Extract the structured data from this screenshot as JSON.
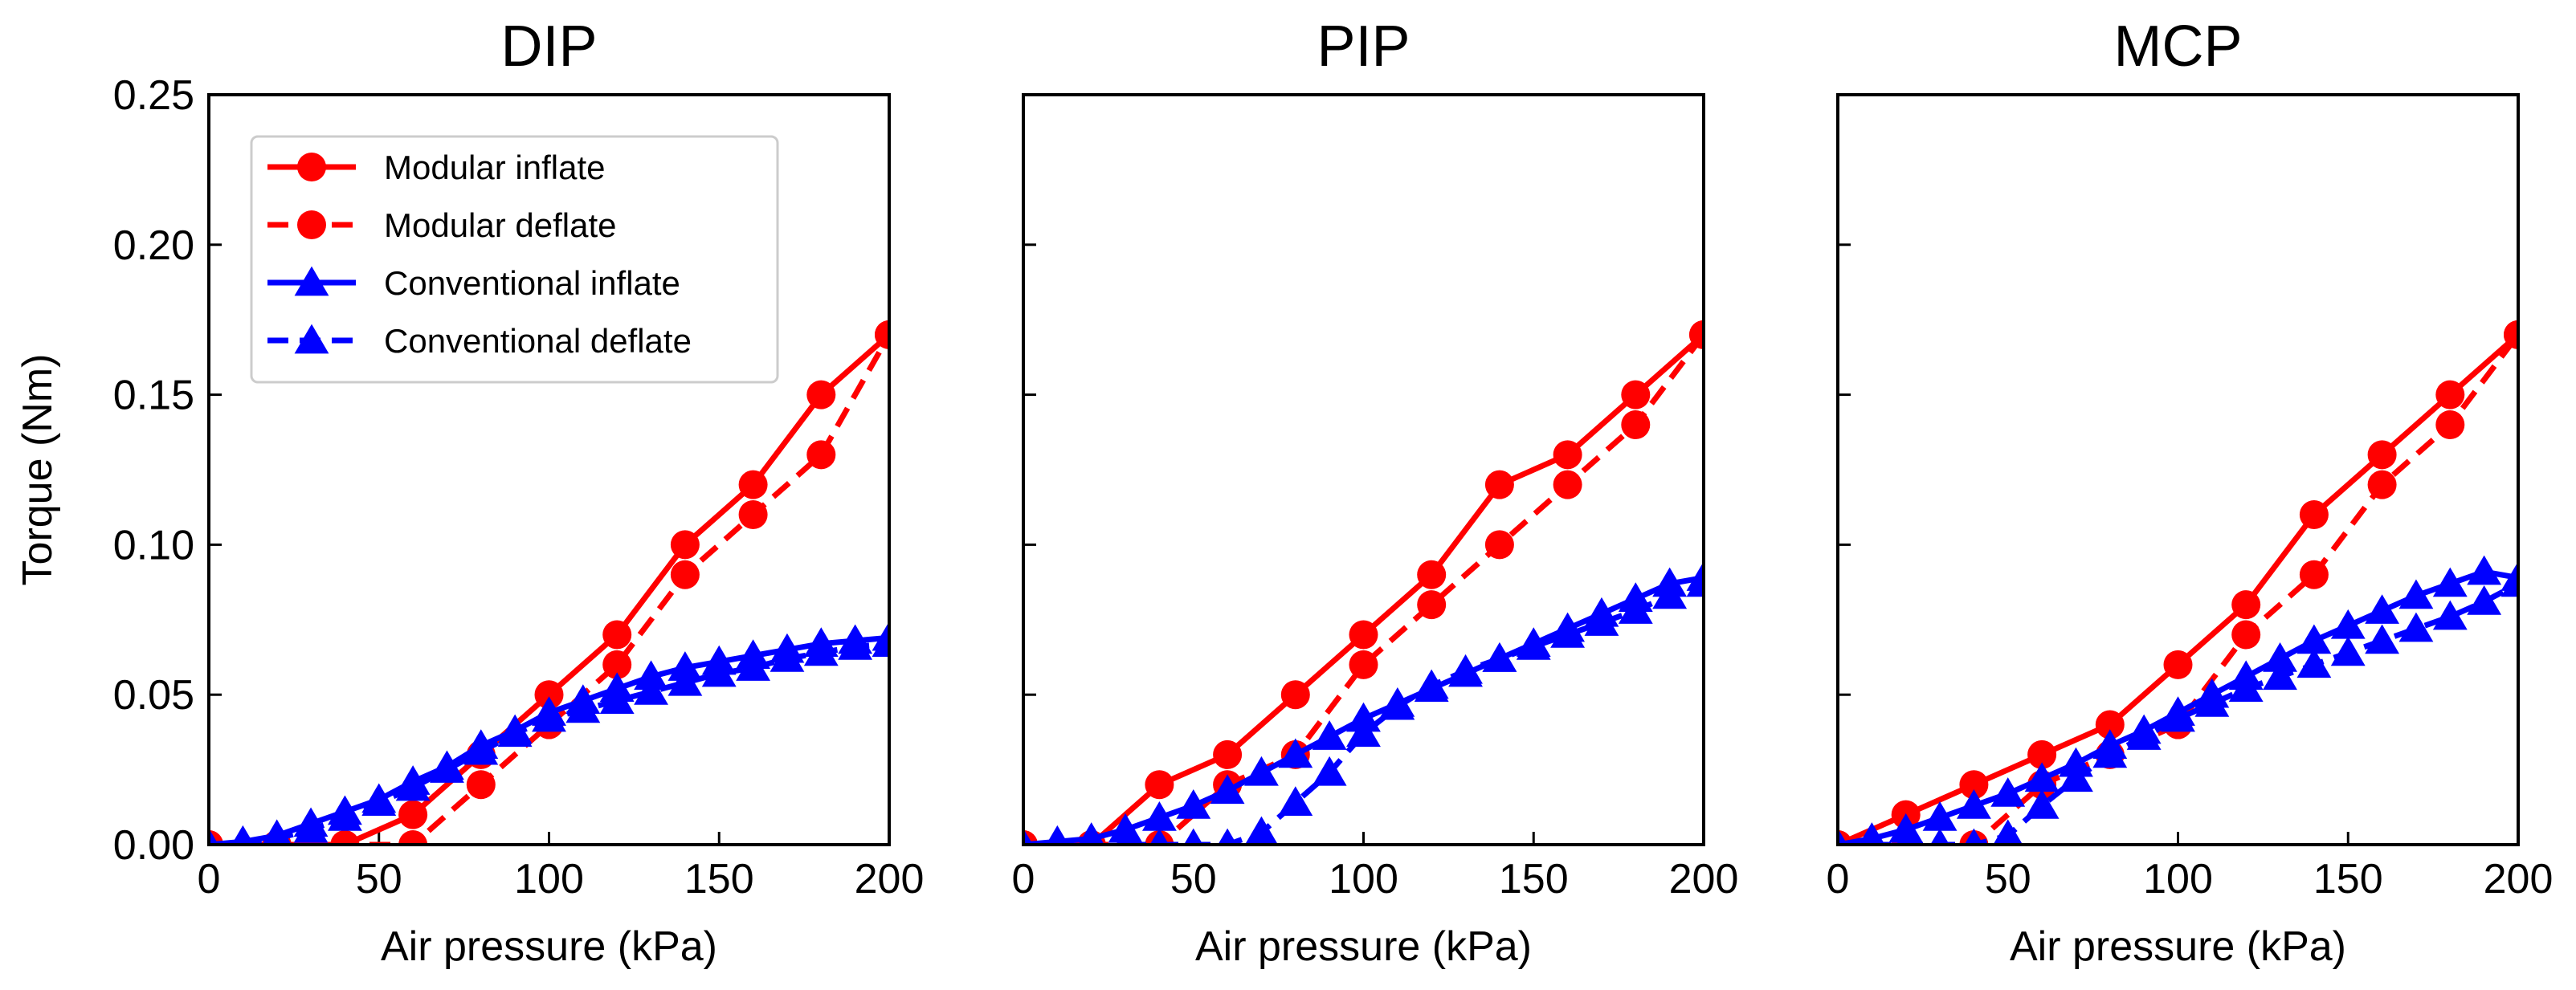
{
  "chart_data": [
    {
      "type": "line",
      "title": "DIP",
      "xlabel": "Air pressure (kPa)",
      "ylabel": "Torque (Nm)",
      "xlim": [
        0,
        200
      ],
      "ylim": [
        0,
        0.25
      ],
      "xticks": [
        "0",
        "50",
        "100",
        "150",
        "200"
      ],
      "yticks": [
        "0.00",
        "0.05",
        "0.10",
        "0.15",
        "0.20",
        "0.25"
      ],
      "grid": false,
      "legend": "top-left",
      "series": [
        {
          "name": "Modular inflate",
          "color": "#ff0000",
          "marker": "circle",
          "style": "solid",
          "x": [
            0,
            20,
            40,
            60,
            80,
            100,
            120,
            140,
            160,
            180,
            200
          ],
          "y": [
            0,
            0,
            0,
            0.01,
            0.03,
            0.05,
            0.07,
            0.1,
            0.12,
            0.15,
            0.17
          ]
        },
        {
          "name": "Modular deflate",
          "color": "#ff0000",
          "marker": "circle",
          "style": "dashed",
          "x": [
            0,
            20,
            40,
            60,
            80,
            100,
            120,
            140,
            160,
            180,
            200
          ],
          "y": [
            0,
            0,
            0,
            0,
            0.02,
            0.04,
            0.06,
            0.09,
            0.11,
            0.13,
            0.17
          ]
        },
        {
          "name": "Conventional inflate",
          "color": "#0000ff",
          "marker": "triangle",
          "style": "solid",
          "x": [
            0,
            10,
            20,
            30,
            40,
            50,
            60,
            70,
            80,
            90,
            100,
            110,
            120,
            130,
            140,
            150,
            160,
            170,
            180,
            190,
            200
          ],
          "y": [
            0,
            0.001,
            0.003,
            0.007,
            0.011,
            0.015,
            0.021,
            0.026,
            0.033,
            0.038,
            0.044,
            0.048,
            0.052,
            0.056,
            0.059,
            0.061,
            0.063,
            0.065,
            0.067,
            0.068,
            0.069
          ]
        },
        {
          "name": "Conventional deflate",
          "color": "#0000ff",
          "marker": "triangle",
          "style": "dashed",
          "x": [
            0,
            10,
            20,
            30,
            40,
            50,
            60,
            70,
            80,
            90,
            100,
            110,
            120,
            130,
            140,
            150,
            160,
            170,
            180,
            190,
            200
          ],
          "y": [
            0,
            0,
            0.002,
            0.005,
            0.009,
            0.014,
            0.019,
            0.025,
            0.031,
            0.037,
            0.042,
            0.045,
            0.048,
            0.051,
            0.054,
            0.057,
            0.059,
            0.062,
            0.064,
            0.066,
            0.067
          ]
        }
      ]
    },
    {
      "type": "line",
      "title": "PIP",
      "xlabel": "Air pressure (kPa)",
      "ylabel": "",
      "xlim": [
        0,
        200
      ],
      "ylim": [
        0,
        0.25
      ],
      "xticks": [
        "0",
        "50",
        "100",
        "150",
        "200"
      ],
      "yticks": [],
      "grid": false,
      "series": [
        {
          "name": "Modular inflate",
          "color": "#ff0000",
          "marker": "circle",
          "style": "solid",
          "x": [
            0,
            20,
            40,
            60,
            80,
            100,
            120,
            140,
            160,
            180,
            200
          ],
          "y": [
            0,
            0,
            0.02,
            0.03,
            0.05,
            0.07,
            0.09,
            0.12,
            0.13,
            0.15,
            0.17
          ]
        },
        {
          "name": "Modular deflate",
          "color": "#ff0000",
          "marker": "circle",
          "style": "dashed",
          "x": [
            0,
            20,
            40,
            60,
            80,
            100,
            120,
            140,
            160,
            180,
            200
          ],
          "y": [
            0,
            0,
            0,
            0.02,
            0.03,
            0.06,
            0.08,
            0.1,
            0.12,
            0.14,
            0.17
          ]
        },
        {
          "name": "Conventional inflate",
          "color": "#0000ff",
          "marker": "triangle",
          "style": "solid",
          "x": [
            0,
            10,
            20,
            30,
            40,
            50,
            60,
            70,
            80,
            90,
            100,
            110,
            120,
            130,
            140,
            150,
            160,
            170,
            180,
            190,
            200
          ],
          "y": [
            0,
            0.001,
            0.002,
            0.005,
            0.009,
            0.013,
            0.018,
            0.024,
            0.03,
            0.036,
            0.042,
            0.047,
            0.052,
            0.057,
            0.062,
            0.067,
            0.072,
            0.077,
            0.082,
            0.087,
            0.089
          ]
        },
        {
          "name": "Conventional deflate",
          "color": "#0000ff",
          "marker": "triangle",
          "style": "dashed",
          "x": [
            30,
            40,
            50,
            60,
            70,
            80,
            90,
            100,
            110,
            120,
            130,
            140,
            150,
            160,
            170,
            180,
            190,
            200
          ],
          "y": [
            0,
            0,
            0,
            0,
            0.004,
            0.014,
            0.024,
            0.037,
            0.046,
            0.053,
            0.058,
            0.062,
            0.066,
            0.07,
            0.074,
            0.078,
            0.083,
            0.087
          ]
        }
      ]
    },
    {
      "type": "line",
      "title": "MCP",
      "xlabel": "Air pressure (kPa)",
      "ylabel": "",
      "xlim": [
        0,
        200
      ],
      "ylim": [
        0,
        0.25
      ],
      "xticks": [
        "0",
        "50",
        "100",
        "150",
        "200"
      ],
      "yticks": [],
      "grid": false,
      "series": [
        {
          "name": "Modular inflate",
          "color": "#ff0000",
          "marker": "circle",
          "style": "solid",
          "x": [
            0,
            20,
            40,
            60,
            80,
            100,
            120,
            140,
            160,
            180,
            200
          ],
          "y": [
            0,
            0.01,
            0.02,
            0.03,
            0.04,
            0.06,
            0.08,
            0.11,
            0.13,
            0.15,
            0.17
          ]
        },
        {
          "name": "Modular deflate",
          "color": "#ff0000",
          "marker": "circle",
          "style": "dashed",
          "x": [
            0,
            20,
            40,
            60,
            80,
            100,
            120,
            140,
            160,
            180,
            200
          ],
          "y": [
            0,
            0,
            0,
            0.02,
            0.03,
            0.04,
            0.07,
            0.09,
            0.12,
            0.14,
            0.17
          ]
        },
        {
          "name": "Conventional inflate",
          "color": "#0000ff",
          "marker": "triangle",
          "style": "solid",
          "x": [
            0,
            10,
            20,
            30,
            40,
            50,
            60,
            70,
            80,
            90,
            100,
            110,
            120,
            130,
            140,
            150,
            160,
            170,
            180,
            190,
            200
          ],
          "y": [
            0,
            0.002,
            0.005,
            0.009,
            0.013,
            0.017,
            0.022,
            0.027,
            0.033,
            0.038,
            0.044,
            0.05,
            0.056,
            0.062,
            0.068,
            0.073,
            0.078,
            0.083,
            0.087,
            0.091,
            0.089
          ]
        },
        {
          "name": "Conventional deflate",
          "color": "#0000ff",
          "marker": "triangle",
          "style": "dashed",
          "x": [
            0,
            10,
            20,
            30,
            40,
            50,
            60,
            70,
            80,
            90,
            100,
            110,
            120,
            130,
            140,
            150,
            160,
            170,
            180,
            190,
            200
          ],
          "y": [
            0,
            0,
            0,
            0,
            0,
            0.003,
            0.013,
            0.022,
            0.03,
            0.036,
            0.042,
            0.047,
            0.052,
            0.056,
            0.06,
            0.064,
            0.068,
            0.072,
            0.076,
            0.081,
            0.087
          ]
        }
      ]
    }
  ]
}
